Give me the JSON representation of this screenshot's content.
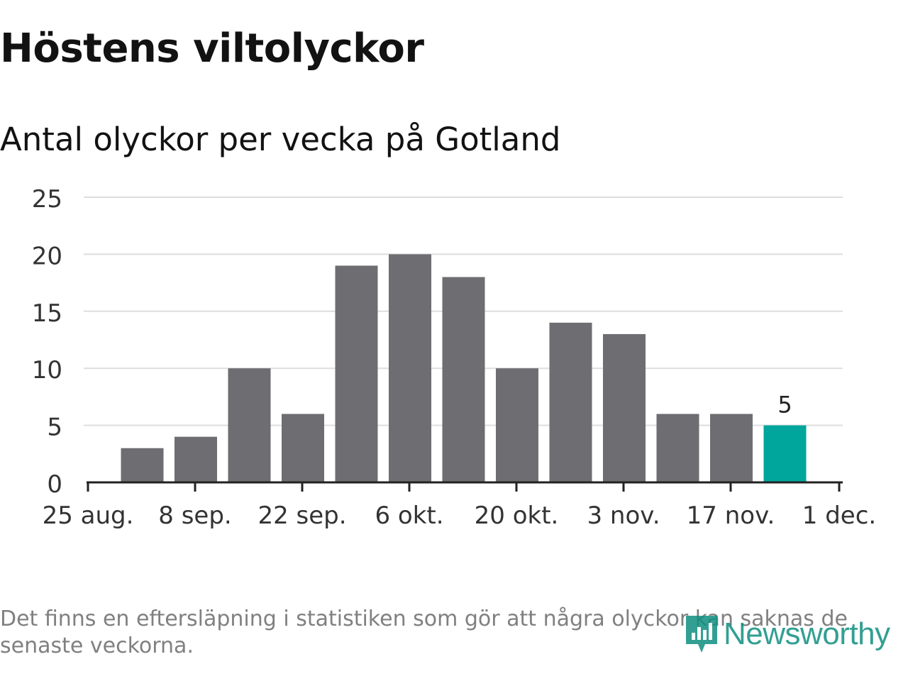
{
  "chart_data": {
    "type": "bar",
    "title": "Höstens viltolyckor",
    "subtitle": "Antal olyckor per vecka på Gotland",
    "xlabel": "",
    "ylabel": "",
    "categories": [
      "2020-09-01",
      "2020-09-08",
      "2020-09-15",
      "2020-09-22",
      "2020-09-29",
      "2020-10-06",
      "2020-10-13",
      "2020-10-20",
      "2020-10-27",
      "2020-11-03",
      "2020-11-10",
      "2020-11-17",
      "2020-11-24"
    ],
    "values": [
      3,
      4,
      10,
      6,
      19,
      20,
      18,
      10,
      14,
      13,
      6,
      6,
      5
    ],
    "highlight_index": 12,
    "highlight_label": "5",
    "ylim": [
      0,
      25
    ],
    "yticks": [
      "0",
      "5",
      "10",
      "15",
      "20",
      "25"
    ],
    "xticks": [
      "25 aug.",
      "8 sep.",
      "22 sep.",
      "6 okt.",
      "20 okt.",
      "3 nov.",
      "17 nov.",
      "1 dec."
    ],
    "grid": true,
    "legend": "none",
    "colors": {
      "bar": "#6e6d72",
      "highlight": "#00a69c",
      "grid": "#dedede",
      "axis": "#222222"
    }
  },
  "footer": {
    "note": "Det finns en eftersläpning i statistiken som gör att några olyckor kan saknas de senaste veckorna.",
    "brand": "Newsworthy",
    "brand_icon": "newsworthy-logo-icon",
    "brand_color": "#0f8f80"
  }
}
